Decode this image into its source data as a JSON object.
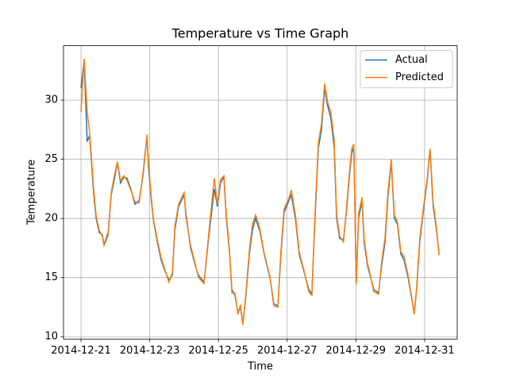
{
  "chart_data": {
    "type": "line",
    "title": "Temperature vs Time Graph",
    "x_label": "Time",
    "y_label": "Temperature",
    "x": [
      0,
      0.09,
      0.18,
      0.25,
      0.37,
      0.44,
      0.53,
      0.62,
      0.67,
      0.79,
      0.88,
      0.97,
      1.06,
      1.15,
      1.25,
      1.34,
      1.45,
      1.57,
      1.69,
      1.8,
      1.92,
      1.96,
      2.03,
      2.1,
      2.22,
      2.33,
      2.45,
      2.56,
      2.66,
      2.73,
      2.84,
      3.0,
      3.05,
      3.19,
      3.33,
      3.42,
      3.58,
      3.72,
      3.88,
      3.97,
      4.06,
      4.16,
      4.23,
      4.32,
      4.39,
      4.48,
      4.57,
      4.64,
      4.71,
      4.8,
      4.9,
      4.99,
      5.08,
      5.2,
      5.33,
      5.5,
      5.61,
      5.73,
      5.82,
      5.91,
      6.05,
      6.12,
      6.24,
      6.35,
      6.49,
      6.63,
      6.72,
      6.81,
      6.91,
      7.0,
      7.09,
      7.18,
      7.27,
      7.37,
      7.44,
      7.53,
      7.64,
      7.74,
      7.81,
      7.88,
      7.94,
      8.01,
      8.08,
      8.18,
      8.24,
      8.34,
      8.43,
      8.52,
      8.66,
      8.75,
      8.85,
      8.94,
      9.03,
      9.12,
      9.21,
      9.31,
      9.4,
      9.52,
      9.61,
      9.7,
      9.77,
      9.86,
      9.98,
      10.07,
      10.16,
      10.25,
      10.35,
      10.42
    ],
    "series": [
      {
        "name": "Actual",
        "color": "#1f77b4",
        "values": [
          31,
          33.4,
          26.5,
          27,
          22,
          20,
          18.8,
          18.6,
          17.8,
          18.8,
          22,
          23.3,
          24.7,
          23,
          23.5,
          23.4,
          22.5,
          21.2,
          21.5,
          23.5,
          27,
          24.5,
          22,
          20,
          18,
          16.5,
          15.5,
          14.8,
          15.2,
          19,
          21,
          22,
          20.5,
          17.5,
          16,
          15.2,
          14.6,
          18.5,
          22.5,
          21,
          23,
          23.5,
          20,
          17.2,
          14,
          13.5,
          12,
          12.5,
          11.1,
          13.5,
          17,
          19,
          20,
          19,
          17,
          15,
          12.8,
          12.6,
          17,
          20.5,
          21.5,
          22,
          20,
          17,
          15.5,
          14,
          13.6,
          20,
          26,
          27.5,
          31,
          29.5,
          28.5,
          26,
          20,
          18.3,
          18.2,
          21,
          23.5,
          25.5,
          26,
          14.5,
          20,
          21.5,
          18,
          16,
          15,
          14,
          13.7,
          16,
          18,
          22,
          24.8,
          20,
          19.5,
          17,
          16.5,
          15,
          13.5,
          12,
          14,
          18,
          21,
          23,
          25.8,
          21,
          19,
          17
        ]
      },
      {
        "name": "Predicted",
        "color": "#ff7f0e",
        "values": [
          29,
          33.5,
          29,
          27.3,
          22.4,
          20.2,
          19,
          18.5,
          17.7,
          18.6,
          22.2,
          23.6,
          24.8,
          23.2,
          23.6,
          23.2,
          22.4,
          21.4,
          21.3,
          23.7,
          27.1,
          25,
          22.3,
          20.1,
          18.2,
          16.7,
          15.6,
          14.6,
          15.4,
          19.3,
          21.2,
          22.2,
          20.2,
          17.7,
          16.1,
          15,
          14.5,
          18.8,
          23.4,
          21.2,
          23.3,
          23.6,
          20.3,
          17.4,
          13.7,
          13.7,
          11.9,
          12.7,
          11,
          13.7,
          17.3,
          19.5,
          20.3,
          19.2,
          17.1,
          15.1,
          12.6,
          12.5,
          17.3,
          20.8,
          21.7,
          22.4,
          20.3,
          17.2,
          15.6,
          13.8,
          13.5,
          20.4,
          26.4,
          28,
          31.4,
          29.8,
          29,
          26.6,
          20.3,
          18.5,
          18,
          21.3,
          23.8,
          25.9,
          26.3,
          14.4,
          20.4,
          21.8,
          18.3,
          16.2,
          15.1,
          13.8,
          13.6,
          16.3,
          18.4,
          22.4,
          25,
          20.3,
          19.7,
          17.2,
          16.8,
          15.2,
          13.6,
          11.9,
          14.2,
          18.3,
          21.2,
          23.2,
          25.9,
          21.3,
          19.2,
          16.9
        ]
      }
    ],
    "xlim": [
      -0.51,
      10.95
    ],
    "xticks": [
      {
        "value": 0,
        "label": "2014-12-21"
      },
      {
        "value": 2,
        "label": "2014-12-23"
      },
      {
        "value": 4,
        "label": "2014-12-25"
      },
      {
        "value": 6,
        "label": "2014-12-27"
      },
      {
        "value": 8,
        "label": "2014-12-29"
      },
      {
        "value": 10,
        "label": "2014-12-31"
      }
    ],
    "ylim": [
      9.8,
      34.6
    ],
    "yticks": [
      10,
      15,
      20,
      25,
      30
    ],
    "grid": true,
    "legend": "upper right"
  }
}
